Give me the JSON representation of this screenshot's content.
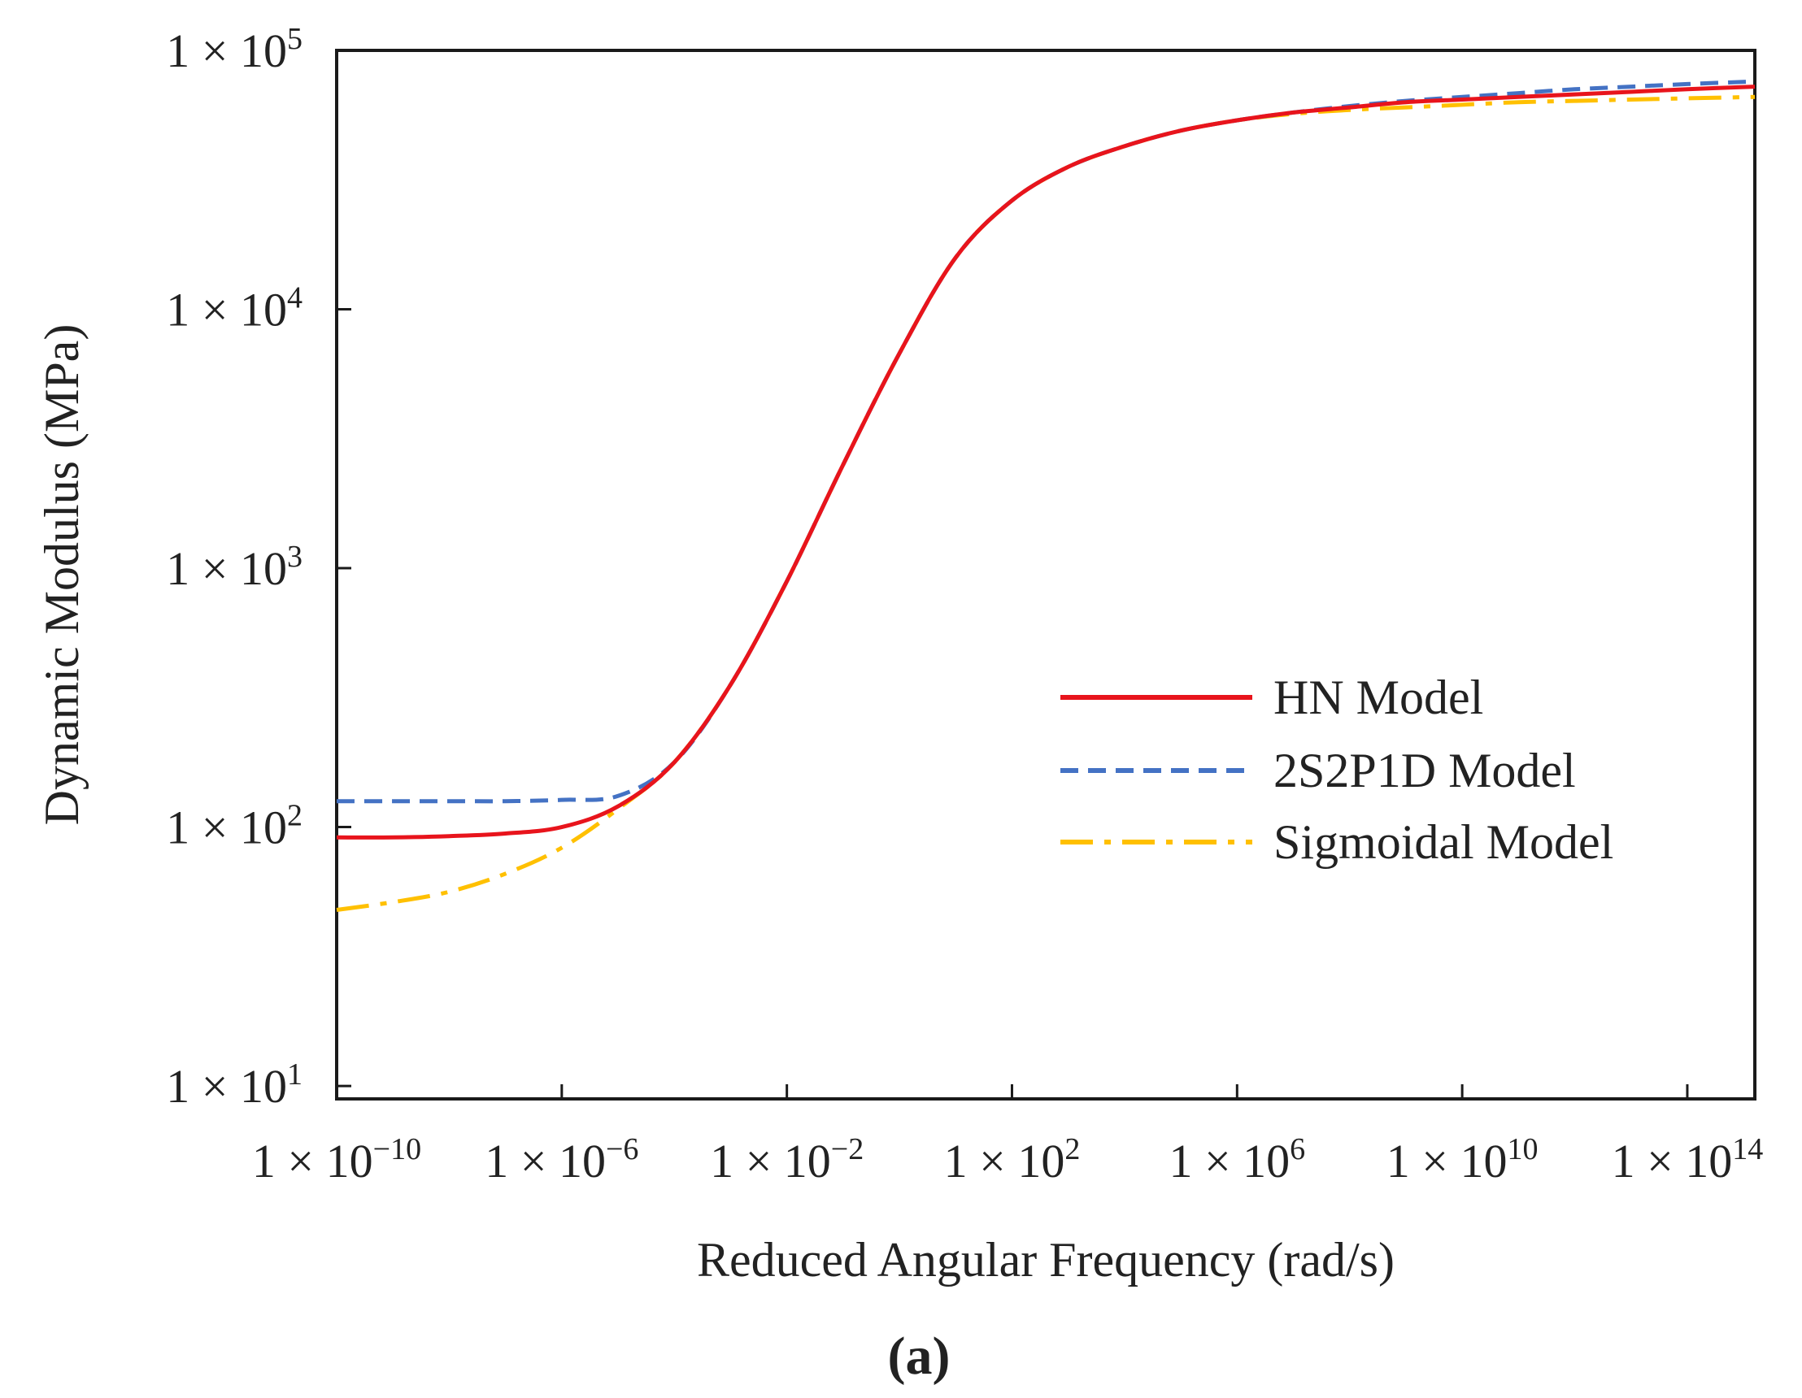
{
  "chart_data": {
    "type": "line",
    "title": "",
    "panel_label": "(a)",
    "xlabel": "Reduced Angular Frequency (rad/s)",
    "ylabel": "Dynamic Modulus (MPa)",
    "x_scale": "log",
    "y_scale": "log",
    "xlim_log10": [
      -10,
      15.2
    ],
    "ylim_log10": [
      0.95,
      5
    ],
    "grid": false,
    "legend_position": "right-middle",
    "x_ticks": [
      {
        "exp": -10,
        "base": "1 × 10",
        "sup": "−10"
      },
      {
        "exp": -6,
        "base": "1 × 10",
        "sup": "−6"
      },
      {
        "exp": -2,
        "base": "1 × 10",
        "sup": "−2"
      },
      {
        "exp": 2,
        "base": "1 × 10",
        "sup": "2"
      },
      {
        "exp": 6,
        "base": "1 × 10",
        "sup": "6"
      },
      {
        "exp": 10,
        "base": "1 × 10",
        "sup": "10"
      },
      {
        "exp": 14,
        "base": "1 × 10",
        "sup": "14"
      }
    ],
    "y_ticks": [
      {
        "exp": 1,
        "base": "1 × 10",
        "sup": "1"
      },
      {
        "exp": 2,
        "base": "1 × 10",
        "sup": "2"
      },
      {
        "exp": 3,
        "base": "1 × 10",
        "sup": "3"
      },
      {
        "exp": 4,
        "base": "1 × 10",
        "sup": "4"
      },
      {
        "exp": 5,
        "base": "1 × 10",
        "sup": "5"
      }
    ],
    "series": [
      {
        "name": "HN Model",
        "color": "#e8141c",
        "dash": "solid",
        "x_log10": [
          -10,
          -9,
          -8,
          -7,
          -6,
          -5,
          -4,
          -3,
          -2,
          -1,
          0,
          1,
          2,
          3,
          4,
          5,
          6,
          7,
          8,
          9,
          10,
          11,
          12,
          13,
          14,
          15.2
        ],
        "y_log10": [
          1.96,
          1.96,
          1.965,
          1.975,
          2.0,
          2.08,
          2.25,
          2.55,
          2.95,
          3.4,
          3.83,
          4.2,
          4.42,
          4.55,
          4.63,
          4.69,
          4.73,
          4.76,
          4.78,
          4.8,
          4.81,
          4.82,
          4.83,
          4.84,
          4.85,
          4.86
        ]
      },
      {
        "name": "2S2P1D Model",
        "color": "#4472c4",
        "dash": "dashed",
        "x_log10": [
          -10,
          -9,
          -8,
          -7,
          -6,
          -5,
          -4,
          -3,
          -2,
          -1,
          0,
          1,
          2,
          3,
          4,
          5,
          6,
          7,
          8,
          9,
          10,
          11,
          12,
          13,
          14,
          15.2
        ],
        "y_log10": [
          2.1,
          2.1,
          2.1,
          2.1,
          2.105,
          2.12,
          2.25,
          2.55,
          2.95,
          3.4,
          3.83,
          4.2,
          4.42,
          4.55,
          4.63,
          4.69,
          4.73,
          4.76,
          4.785,
          4.805,
          4.82,
          4.835,
          4.85,
          4.86,
          4.87,
          4.88
        ]
      },
      {
        "name": "Sigmoidal Model",
        "color": "#ffc000",
        "dash": "dashdot",
        "x_log10": [
          -10,
          -9,
          -8,
          -7,
          -6,
          -5,
          -4,
          -3,
          -2,
          -1,
          0,
          1,
          2,
          3,
          4,
          5,
          6,
          7,
          8,
          9,
          10,
          11,
          12,
          13,
          14,
          15.2
        ],
        "y_log10": [
          1.68,
          1.71,
          1.75,
          1.82,
          1.92,
          2.07,
          2.25,
          2.55,
          2.95,
          3.4,
          3.83,
          4.2,
          4.42,
          4.55,
          4.63,
          4.69,
          4.73,
          4.755,
          4.77,
          4.78,
          4.79,
          4.8,
          4.805,
          4.81,
          4.815,
          4.82
        ]
      }
    ]
  }
}
